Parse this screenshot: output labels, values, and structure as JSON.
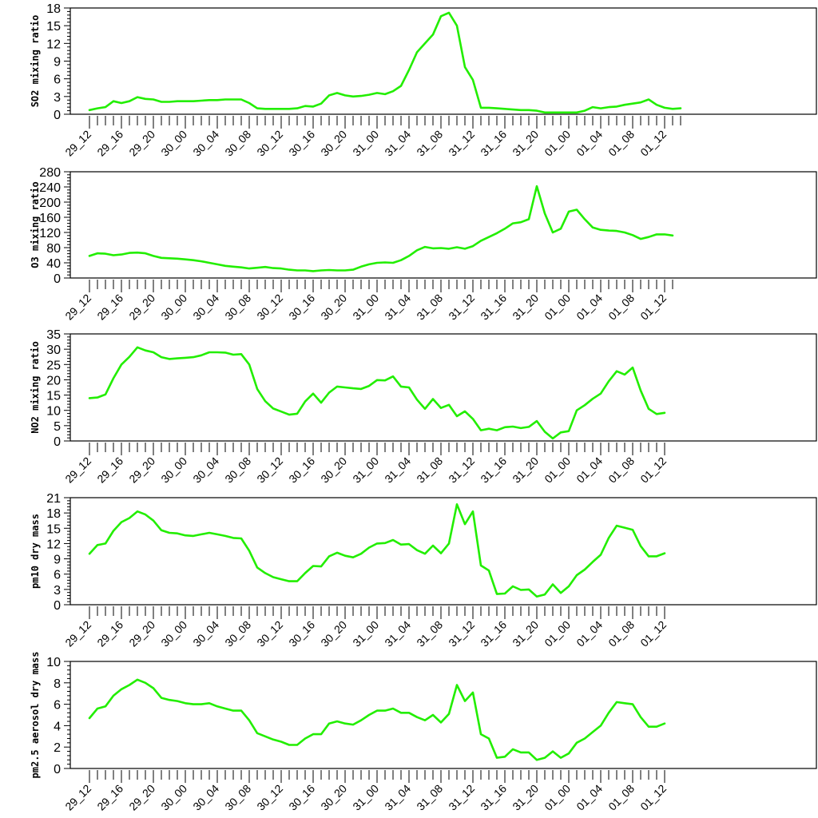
{
  "x_ticks": [
    "29_12",
    "29_16",
    "29_20",
    "30_00",
    "30_04",
    "30_08",
    "30_12",
    "30_16",
    "30_20",
    "31_00",
    "31_04",
    "31_08",
    "31_12",
    "31_16",
    "31_20",
    "01_00",
    "01_04",
    "01_08",
    "01_12"
  ],
  "line_color": "#22ee00",
  "chart_data": [
    {
      "type": "line",
      "ylabel": "SO2 mixing ratio",
      "ylim": [
        0,
        18
      ],
      "yticks": [
        0,
        3,
        6,
        9,
        12,
        15,
        18
      ],
      "grid": false,
      "series": [
        {
          "values": [
            0.7,
            1.0,
            1.2,
            2.2,
            1.9,
            2.2,
            2.9,
            2.6,
            2.5,
            2.1,
            2.1,
            2.2,
            2.2,
            2.2,
            2.3,
            2.4,
            2.4,
            2.5,
            2.5,
            2.5,
            1.9,
            1.0,
            0.9,
            0.9,
            0.9,
            0.9,
            1.0,
            1.4,
            1.3,
            1.8,
            3.2,
            3.6,
            3.2,
            3.0,
            3.1,
            3.3,
            3.6,
            3.4,
            3.9,
            4.8,
            7.5,
            10.5,
            12.0,
            13.5,
            16.6,
            17.2,
            15.0,
            8.0,
            5.8,
            1.1,
            1.1,
            1.0,
            0.9,
            0.8,
            0.7,
            0.7,
            0.6,
            0.3,
            0.3,
            0.3,
            0.3,
            0.3,
            0.6,
            1.2,
            1.0,
            1.2,
            1.3,
            1.6,
            1.8,
            2.0,
            2.5,
            1.6,
            1.1,
            0.9,
            1.0
          ]
        }
      ]
    },
    {
      "type": "line",
      "ylabel": "O3 mixing ratio",
      "ylim": [
        0,
        280
      ],
      "yticks": [
        0,
        40,
        80,
        120,
        160,
        200,
        240,
        280
      ],
      "grid": false,
      "series": [
        {
          "values": [
            58,
            65,
            64,
            60,
            62,
            66,
            67,
            65,
            58,
            53,
            52,
            51,
            49,
            47,
            44,
            40,
            36,
            32,
            30,
            28,
            25,
            27,
            29,
            26,
            25,
            22,
            20,
            20,
            18,
            20,
            21,
            20,
            20,
            22,
            30,
            36,
            40,
            41,
            40,
            47,
            58,
            73,
            82,
            78,
            79,
            77,
            81,
            77,
            84,
            98,
            108,
            118,
            130,
            144,
            147,
            155,
            242,
            170,
            120,
            130,
            175,
            180,
            155,
            133,
            127,
            125,
            124,
            120,
            113,
            103,
            108,
            115,
            115,
            112
          ]
        }
      ]
    },
    {
      "type": "line",
      "ylabel": "NO2 mixing ratio",
      "ylim": [
        0,
        35
      ],
      "yticks": [
        0,
        5,
        10,
        15,
        20,
        25,
        30,
        35
      ],
      "grid": false,
      "series": [
        {
          "values": [
            14,
            14.2,
            15.2,
            20.5,
            25,
            27.5,
            30.6,
            29.6,
            29,
            27.4,
            26.8,
            27,
            27.2,
            27.4,
            28,
            29,
            29,
            28.9,
            28.2,
            28.4,
            25,
            17,
            13,
            10.6,
            9.6,
            8.6,
            8.9,
            12.9,
            15.5,
            12.5,
            15.8,
            17.8,
            17.5,
            17.2,
            17,
            18,
            19.9,
            19.8,
            21.1,
            17.8,
            17.5,
            13.5,
            10.5,
            13.7,
            10.8,
            11.8,
            8.1,
            9.7,
            7.2,
            3.5,
            4.0,
            3.5,
            4.5,
            4.7,
            4.2,
            4.6,
            6.5,
            3.0,
            0.8,
            2.8,
            3.2,
            10.0,
            11.7,
            13.8,
            15.5,
            19.5,
            22.8,
            21.7,
            24.0,
            16.5,
            10.5,
            8.8,
            9.2
          ]
        }
      ]
    },
    {
      "type": "line",
      "ylabel": "pm10 dry mass",
      "ylim": [
        0,
        21
      ],
      "yticks": [
        0,
        3,
        6,
        9,
        12,
        15,
        18,
        21
      ],
      "grid": false,
      "series": [
        {
          "values": [
            10,
            11.7,
            12,
            14.5,
            16.2,
            17,
            18.3,
            17.7,
            16.5,
            14.6,
            14.1,
            14.0,
            13.6,
            13.5,
            13.8,
            14.1,
            13.8,
            13.5,
            13.1,
            13.0,
            10.6,
            7.3,
            6.2,
            5.4,
            5.0,
            4.6,
            4.6,
            6.2,
            7.6,
            7.5,
            9.5,
            10.2,
            9.6,
            9.3,
            10.0,
            11.2,
            12.0,
            12.1,
            12.7,
            11.8,
            11.9,
            10.7,
            10.0,
            11.6,
            10.1,
            12.0,
            19.7,
            15.8,
            18.3,
            7.7,
            6.7,
            2.1,
            2.2,
            3.6,
            2.9,
            3.0,
            1.6,
            2.0,
            4.0,
            2.3,
            3.6,
            5.8,
            6.9,
            8.4,
            9.8,
            13.1,
            15.5,
            15.1,
            14.7,
            11.5,
            9.5,
            9.5,
            10.1
          ]
        }
      ]
    },
    {
      "type": "line",
      "ylabel": "pm2.5 aerosol dry mass",
      "ylim": [
        0,
        10
      ],
      "yticks": [
        0,
        2,
        4,
        6,
        8,
        10
      ],
      "grid": false,
      "series": [
        {
          "values": [
            4.7,
            5.6,
            5.8,
            6.8,
            7.4,
            7.8,
            8.3,
            8.0,
            7.5,
            6.6,
            6.4,
            6.3,
            6.1,
            6.0,
            6.0,
            6.1,
            5.8,
            5.6,
            5.4,
            5.4,
            4.5,
            3.3,
            3.0,
            2.7,
            2.5,
            2.2,
            2.2,
            2.8,
            3.2,
            3.2,
            4.2,
            4.4,
            4.2,
            4.1,
            4.5,
            5.0,
            5.4,
            5.4,
            5.6,
            5.2,
            5.2,
            4.8,
            4.5,
            5.0,
            4.3,
            5.1,
            7.8,
            6.3,
            7.1,
            3.2,
            2.8,
            1.0,
            1.1,
            1.8,
            1.5,
            1.5,
            0.8,
            1.0,
            1.6,
            1.0,
            1.4,
            2.4,
            2.8,
            3.4,
            4.0,
            5.2,
            6.2,
            6.1,
            6.0,
            4.8,
            3.9,
            3.9,
            4.2
          ]
        }
      ]
    }
  ]
}
